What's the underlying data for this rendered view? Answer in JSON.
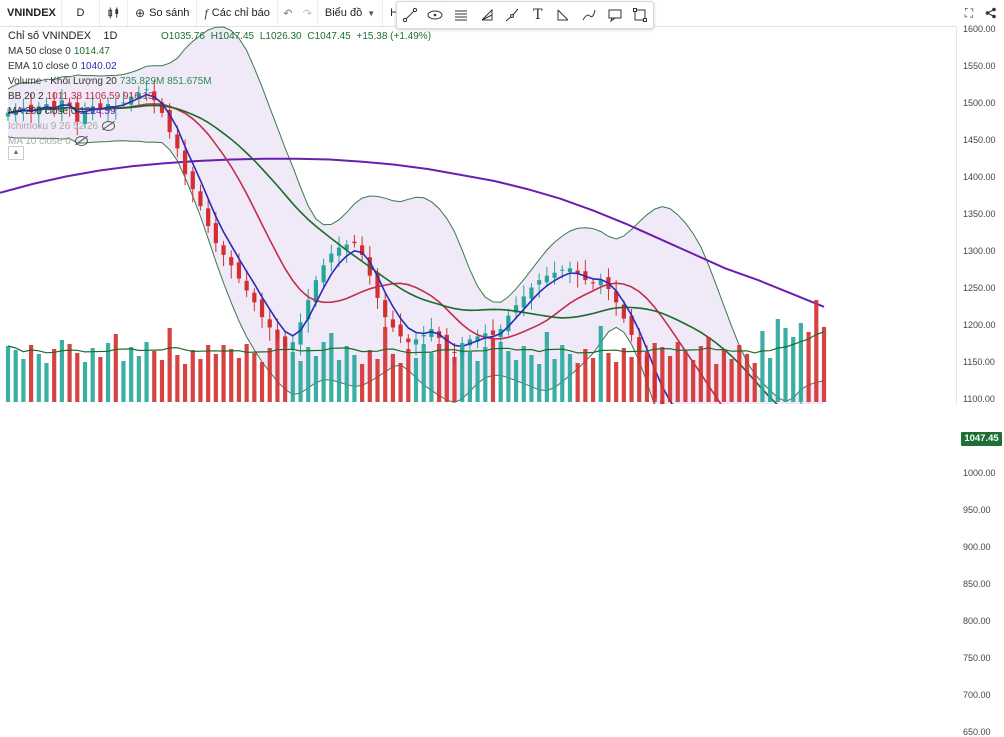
{
  "toolbar": {
    "symbol": "VNINDEX",
    "interval": "D",
    "compare_label": "So sánh",
    "indicators_label": "Các chỉ báo",
    "chart_type_label": "Biểu đồ",
    "template_label": "Hồ sơ"
  },
  "legend": {
    "title": "Chỉ số VNINDEX",
    "interval": "1D",
    "ohlc": {
      "open": "O1035.76",
      "high": "H1047.45",
      "low": "L1026.30",
      "close": "C1047.45",
      "change": "+15.38 (+1.49%)"
    },
    "studies": [
      {
        "label": "MA 50 close 0",
        "values": "1014.47",
        "color": "#1b6b2a"
      },
      {
        "label": "EMA 10 close 0",
        "values": "1040.02",
        "color": "#2b2bb5"
      },
      {
        "label": "Volume - Khối Lượng 20",
        "values": "735.829M  851.675M",
        "color": "#2e8b57"
      },
      {
        "label": "BB 20 2",
        "values": "1011.38  1106.59  916.13",
        "color": "#b8304a"
      },
      {
        "label": "MA 200 close 0",
        "values": "1224.59",
        "color": "#6a1fb0"
      },
      {
        "label": "Ichimoku 9 26 52 26",
        "values": "",
        "color": "#999999"
      },
      {
        "label": "MA 10 close 0",
        "values": "",
        "color": "#999999"
      }
    ]
  },
  "axis": {
    "ticks": [
      "1600.00",
      "1550.00",
      "1500.00",
      "1450.00",
      "1400.00",
      "1350.00",
      "1300.00",
      "1250.00",
      "1200.00",
      "1150.00",
      "1100.00",
      "1050.00",
      "1000.00",
      "950.00",
      "900.00",
      "850.00",
      "800.00",
      "750.00",
      "700.00",
      "650.00"
    ],
    "last_price": "1047.45"
  },
  "colors": {
    "up": "#26a69a",
    "down": "#d32f2f",
    "ma200": "#6a1fb0",
    "ma50": "#1b6b2a",
    "ema10": "#2b2bb5",
    "bb_mid": "#c0304a",
    "bb_fill": "#e8e0f5"
  },
  "chart_data": {
    "type": "line",
    "ylim": [
      650,
      1600
    ],
    "series": [
      {
        "name": "VNINDEX",
        "values": [
          1488,
          1492,
          1495,
          1489,
          1497,
          1500,
          1492,
          1505,
          1498,
          1476,
          1490,
          1497,
          1494,
          1500,
          1497,
          1502,
          1510,
          1515,
          1520,
          1505,
          1488,
          1462,
          1440,
          1405,
          1385,
          1362,
          1335,
          1312,
          1296,
          1282,
          1264,
          1248,
          1232,
          1212,
          1198,
          1182,
          1172,
          1178,
          1205,
          1235,
          1262,
          1282,
          1298,
          1306,
          1310,
          1312,
          1296,
          1268,
          1238,
          1212,
          1198,
          1186,
          1178,
          1182,
          1188,
          1196,
          1184,
          1168,
          1164,
          1170,
          1182,
          1186,
          1190,
          1188,
          1196,
          1214,
          1228,
          1240,
          1252,
          1262,
          1268,
          1272,
          1276,
          1278,
          1270,
          1262,
          1258,
          1262,
          1250,
          1232,
          1210,
          1188,
          1162,
          1132,
          1102,
          1082,
          1070,
          1062,
          1055,
          1050,
          1042,
          1036,
          1030,
          1022,
          1010,
          995,
          978,
          968,
          972,
          985,
          1012,
          1040,
          1070,
          1092,
          1072,
          1058,
          1047
        ]
      },
      {
        "name": "MA 200",
        "values": [
          1380,
          1392,
          1402,
          1410,
          1416,
          1420,
          1423,
          1425,
          1426,
          1426,
          1425,
          1422,
          1418,
          1412,
          1404,
          1396,
          1385,
          1372,
          1356,
          1338,
          1318,
          1298,
          1278,
          1262,
          1244,
          1226
        ]
      }
    ]
  }
}
